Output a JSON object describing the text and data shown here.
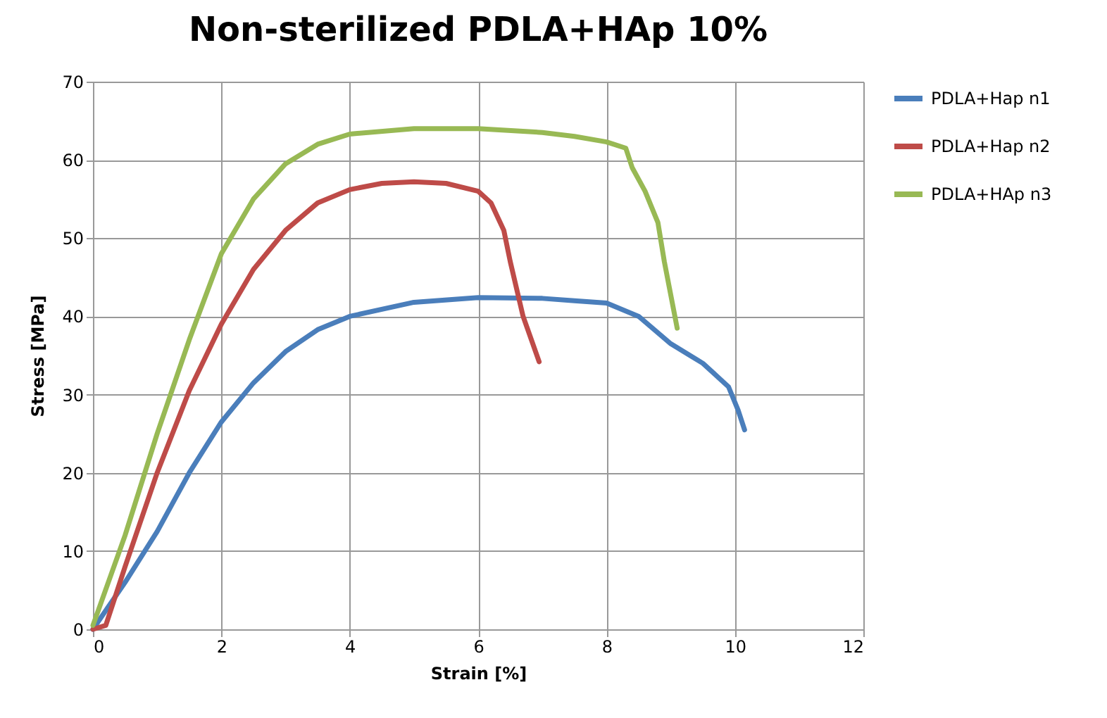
{
  "chart_data": {
    "type": "line",
    "title": "Non-sterilized PDLA+HAp 10%",
    "xlabel": "Strain [%]",
    "ylabel": "Stress [MPa]",
    "xlim": [
      0,
      12
    ],
    "xticks": [
      0,
      2,
      4,
      6,
      8,
      10,
      12
    ],
    "ylim": [
      0,
      70
    ],
    "yticks": [
      0,
      10,
      20,
      30,
      40,
      50,
      60,
      70
    ],
    "grid": true,
    "legend": "right",
    "marker": "none",
    "line_style": "solid",
    "series": [
      {
        "name": "PDLA+Hap n1",
        "color": "#4a7ebb",
        "x": [
          0,
          0.5,
          1,
          1.5,
          2,
          2.5,
          3,
          3.5,
          4,
          5,
          6,
          7,
          7.5,
          8,
          8.5,
          9,
          9.5,
          9.9,
          10.05,
          10.15
        ],
        "values": [
          0,
          6,
          12.5,
          20,
          26.5,
          31.5,
          35.5,
          38.3,
          40,
          41.8,
          42.4,
          42.3,
          42,
          41.7,
          40,
          36.5,
          34,
          31,
          28,
          25.5
        ]
      },
      {
        "name": "PDLA+Hap n2",
        "color": "#be4b48",
        "x": [
          0,
          0.2,
          0.5,
          1,
          1.5,
          2,
          2.5,
          3,
          3.5,
          4,
          4.5,
          5,
          5.5,
          6,
          6.2,
          6.4,
          6.5,
          6.7,
          6.95
        ],
        "values": [
          0,
          0.5,
          8,
          20,
          30.5,
          39,
          46,
          51,
          54.5,
          56.2,
          57,
          57.2,
          57,
          56,
          54.5,
          51,
          47,
          40,
          34.2
        ]
      },
      {
        "name": "PDLA+HAp n3",
        "color": "#98b954",
        "x": [
          0,
          0.5,
          1,
          1.5,
          2,
          2.5,
          3,
          3.5,
          4,
          5,
          6,
          7,
          7.5,
          8,
          8.3,
          8.4,
          8.6,
          8.8,
          8.9,
          9.1
        ],
        "values": [
          0.5,
          12,
          25,
          37,
          48,
          55,
          59.5,
          62,
          63.3,
          64,
          64,
          63.5,
          63,
          62.3,
          61.5,
          59,
          56,
          52,
          47,
          38.5
        ]
      }
    ]
  }
}
